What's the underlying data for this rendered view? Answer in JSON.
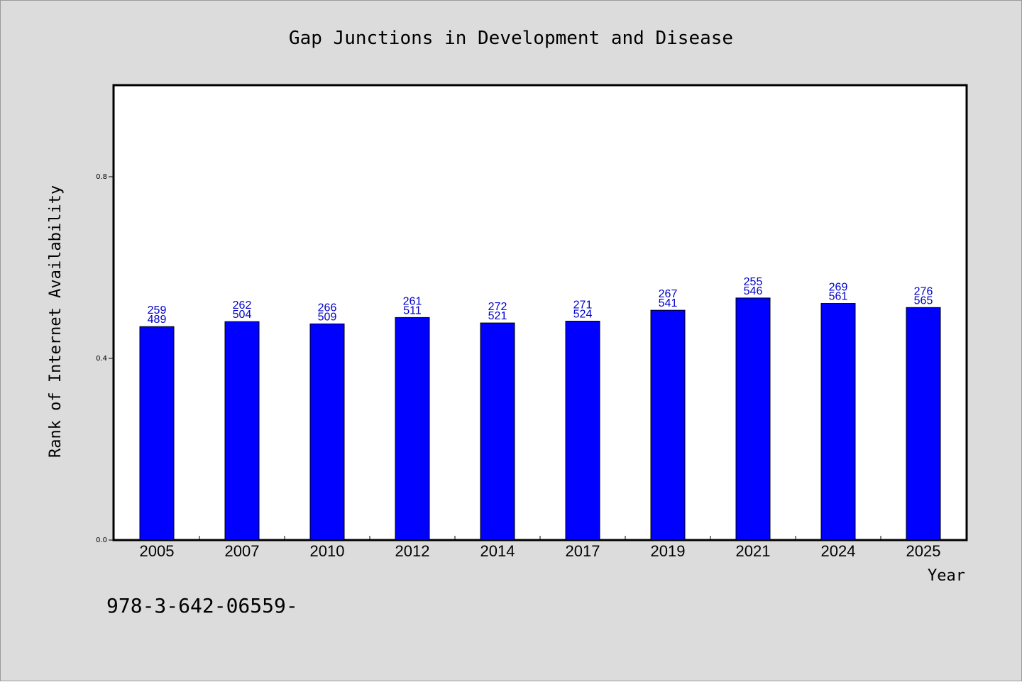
{
  "chart_data": {
    "type": "bar",
    "title": "Gap Junctions in Development and Disease",
    "xlabel": "Year",
    "ylabel": "Rank of Internet Availability",
    "footer_text": "978-3-642-06559-",
    "categories": [
      "2005",
      "2007",
      "2010",
      "2012",
      "2014",
      "2017",
      "2019",
      "2021",
      "2024",
      "2025"
    ],
    "values": [
      0.47,
      0.481,
      0.476,
      0.49,
      0.478,
      0.482,
      0.506,
      0.533,
      0.521,
      0.512
    ],
    "labels_top": [
      "259",
      "262",
      "266",
      "261",
      "272",
      "271",
      "267",
      "255",
      "269",
      "276"
    ],
    "labels_bottom": [
      "489",
      "504",
      "509",
      "511",
      "521",
      "524",
      "541",
      "546",
      "561",
      "565"
    ],
    "ylim": [
      0,
      1.0
    ],
    "yticks": [
      0.0,
      0.4,
      0.8
    ],
    "ytick_labels": [
      "0.0",
      "0.4",
      "0.8"
    ],
    "grid": false,
    "colors": {
      "bar": "#0000ff",
      "bar_edge": "#000000",
      "data_label": "#0000cc",
      "text": "#000000",
      "plot_background": "#ffffff",
      "page_background": "#dcdcdc"
    }
  }
}
